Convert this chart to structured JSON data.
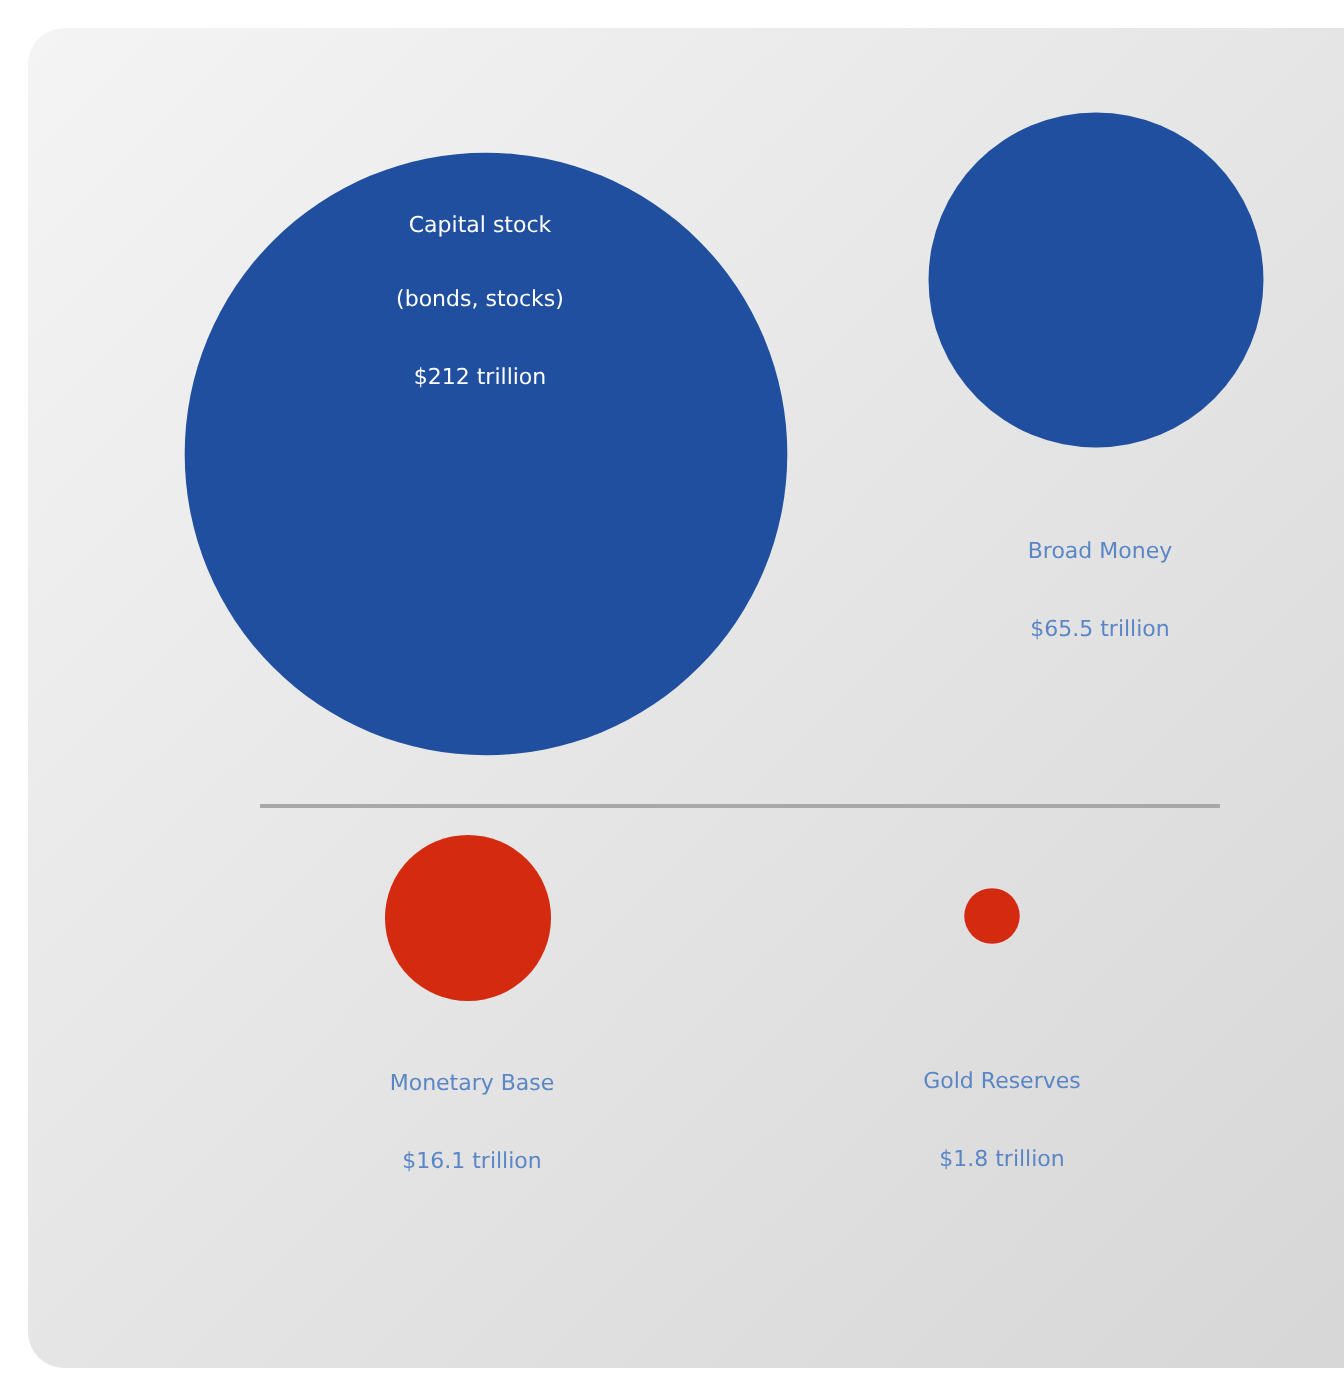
{
  "chart_data": {
    "type": "other",
    "categories": [
      "Capital stock (bonds, stocks)",
      "Broad Money",
      "Monetary Base",
      "Gold Reserves"
    ],
    "values": [
      212,
      65.5,
      16.1,
      1.8
    ],
    "value_labels": [
      "$212 trillion",
      "$65.5 trillion",
      "$16.1 trillion",
      "$1.8 trillion"
    ],
    "colors": [
      "#1f4f9e",
      "#1f4f9e",
      "#d42a10",
      "#d42a10"
    ]
  }
}
